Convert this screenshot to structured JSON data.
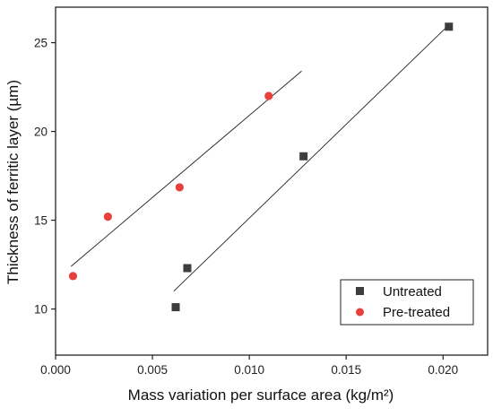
{
  "chart_data": {
    "type": "scatter",
    "xlabel": "Mass variation per surface area (kg/m²)",
    "ylabel": "Thickness of ferritic layer (µm)",
    "xlim": [
      0.0,
      0.0223
    ],
    "ylim": [
      7.4,
      27.0
    ],
    "x_ticks": [
      0.0,
      0.005,
      0.01,
      0.015,
      0.02
    ],
    "x_tick_labels": [
      "0.000",
      "0.005",
      "0.010",
      "0.015",
      "0.020"
    ],
    "y_ticks": [
      10,
      15,
      20,
      25
    ],
    "y_tick_labels": [
      "10",
      "15",
      "20",
      "25"
    ],
    "grid": false,
    "legend_position": "bottom-right",
    "series": [
      {
        "name": "Untreated",
        "marker": "square",
        "color": "#3d3d3d",
        "x": [
          0.0062,
          0.0068,
          0.0128,
          0.0203
        ],
        "y": [
          10.1,
          12.3,
          18.6,
          25.9
        ],
        "fit_line": {
          "x": [
            0.0061,
            0.0203
          ],
          "y": [
            11.0,
            26.0
          ]
        }
      },
      {
        "name": "Pre-treated",
        "marker": "circle",
        "color": "#e8403c",
        "x": [
          0.0009,
          0.0027,
          0.0064,
          0.011
        ],
        "y": [
          11.85,
          15.2,
          16.85,
          22.0
        ],
        "fit_line": {
          "x": [
            0.0008,
            0.0127
          ],
          "y": [
            12.4,
            23.4
          ]
        }
      }
    ]
  }
}
